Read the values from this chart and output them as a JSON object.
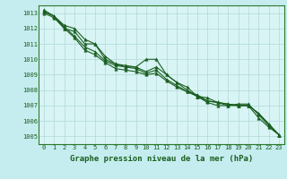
{
  "title": "Graphe pression niveau de la mer (hPa)",
  "bg_color": "#c5ecee",
  "plot_bg_color": "#d8f4f4",
  "line_color": "#1a5e20",
  "grid_color": "#b0d8d8",
  "border_color": "#2d7a2d",
  "x_ticks": [
    0,
    1,
    2,
    3,
    4,
    5,
    6,
    7,
    8,
    9,
    10,
    11,
    12,
    13,
    14,
    15,
    16,
    17,
    18,
    19,
    20,
    21,
    22,
    23
  ],
  "ylim": [
    1004.5,
    1013.5
  ],
  "xlim": [
    -0.5,
    23.5
  ],
  "series": [
    [
      1013.2,
      1012.8,
      1012.2,
      1012.0,
      1011.3,
      1011.0,
      1010.2,
      1009.7,
      1009.6,
      1009.5,
      1010.0,
      1010.0,
      1009.0,
      1008.5,
      1008.2,
      1007.6,
      1007.5,
      1007.2,
      1007.1,
      1007.0,
      1007.0,
      1006.5,
      1005.8,
      1005.1
    ],
    [
      1013.1,
      1012.8,
      1012.0,
      1011.8,
      1011.0,
      1011.0,
      1010.0,
      1009.7,
      1009.5,
      1009.5,
      1009.2,
      1009.5,
      1009.0,
      1008.5,
      1008.0,
      1007.6,
      1007.3,
      1007.2,
      1007.1,
      1007.0,
      1007.0,
      1006.5,
      1005.8,
      1005.1
    ],
    [
      1013.1,
      1012.8,
      1012.1,
      1011.5,
      1010.8,
      1010.5,
      1009.9,
      1009.6,
      1009.5,
      1009.4,
      1009.1,
      1009.3,
      1008.7,
      1008.3,
      1007.9,
      1007.7,
      1007.3,
      1007.2,
      1007.0,
      1007.1,
      1007.1,
      1006.4,
      1005.7,
      1005.1
    ],
    [
      1013.0,
      1012.7,
      1012.0,
      1011.4,
      1010.6,
      1010.3,
      1009.8,
      1009.4,
      1009.3,
      1009.2,
      1009.0,
      1009.1,
      1008.6,
      1008.2,
      1007.9,
      1007.6,
      1007.2,
      1007.0,
      1007.0,
      1007.0,
      1007.0,
      1006.2,
      1005.6,
      1005.1
    ]
  ],
  "marker": "^",
  "markersize": 2.5,
  "linewidth": 0.8,
  "yticks": [
    1005,
    1006,
    1007,
    1008,
    1009,
    1010,
    1011,
    1012,
    1013
  ],
  "title_fontsize": 6.5,
  "tick_fontsize": 5.0
}
